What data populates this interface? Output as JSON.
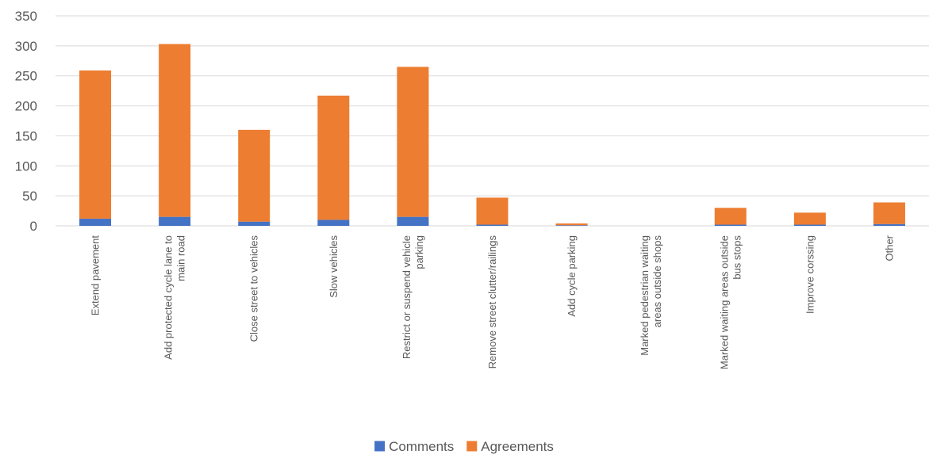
{
  "chart_data": {
    "type": "bar",
    "stacked": true,
    "categories": [
      "Extend pavement",
      "Add protected cycle lane to main road",
      "Close street to vehicles",
      "Slow vehicles",
      "Restrict or suspend vehicle parking",
      "Remove street clutter/railings",
      "Add cycle parking",
      "Marked pedestrian waiting areas outside shops",
      "Marked waiting areas outside bus stops",
      "Improve corssing",
      "Other"
    ],
    "category_lines": [
      [
        "Extend pavement"
      ],
      [
        "Add protected cycle lane to",
        "main road"
      ],
      [
        "Close street to vehicles"
      ],
      [
        "Slow vehicles"
      ],
      [
        "Restrict or suspend vehicle",
        "parking"
      ],
      [
        "Remove street clutter/railings"
      ],
      [
        "Add cycle parking"
      ],
      [
        "Marked pedestrian waiting",
        "areas outside shops"
      ],
      [
        "Marked waiting areas outside",
        "bus stops"
      ],
      [
        "Improve corssing"
      ],
      [
        "Other"
      ]
    ],
    "series": [
      {
        "name": "Comments",
        "color": "#4472C4",
        "values": [
          12,
          15,
          7,
          10,
          15,
          2,
          1,
          0,
          2,
          2,
          3
        ]
      },
      {
        "name": "Agreements",
        "color": "#ED7D31",
        "values": [
          247,
          288,
          153,
          207,
          250,
          45,
          3,
          0,
          28,
          20,
          36
        ]
      }
    ],
    "yticks": [
      0,
      50,
      100,
      150,
      200,
      250,
      300,
      350
    ],
    "ylim": [
      0,
      350
    ],
    "grid": true,
    "legend_position": "bottom",
    "title": "",
    "xlabel": "",
    "ylabel": ""
  }
}
